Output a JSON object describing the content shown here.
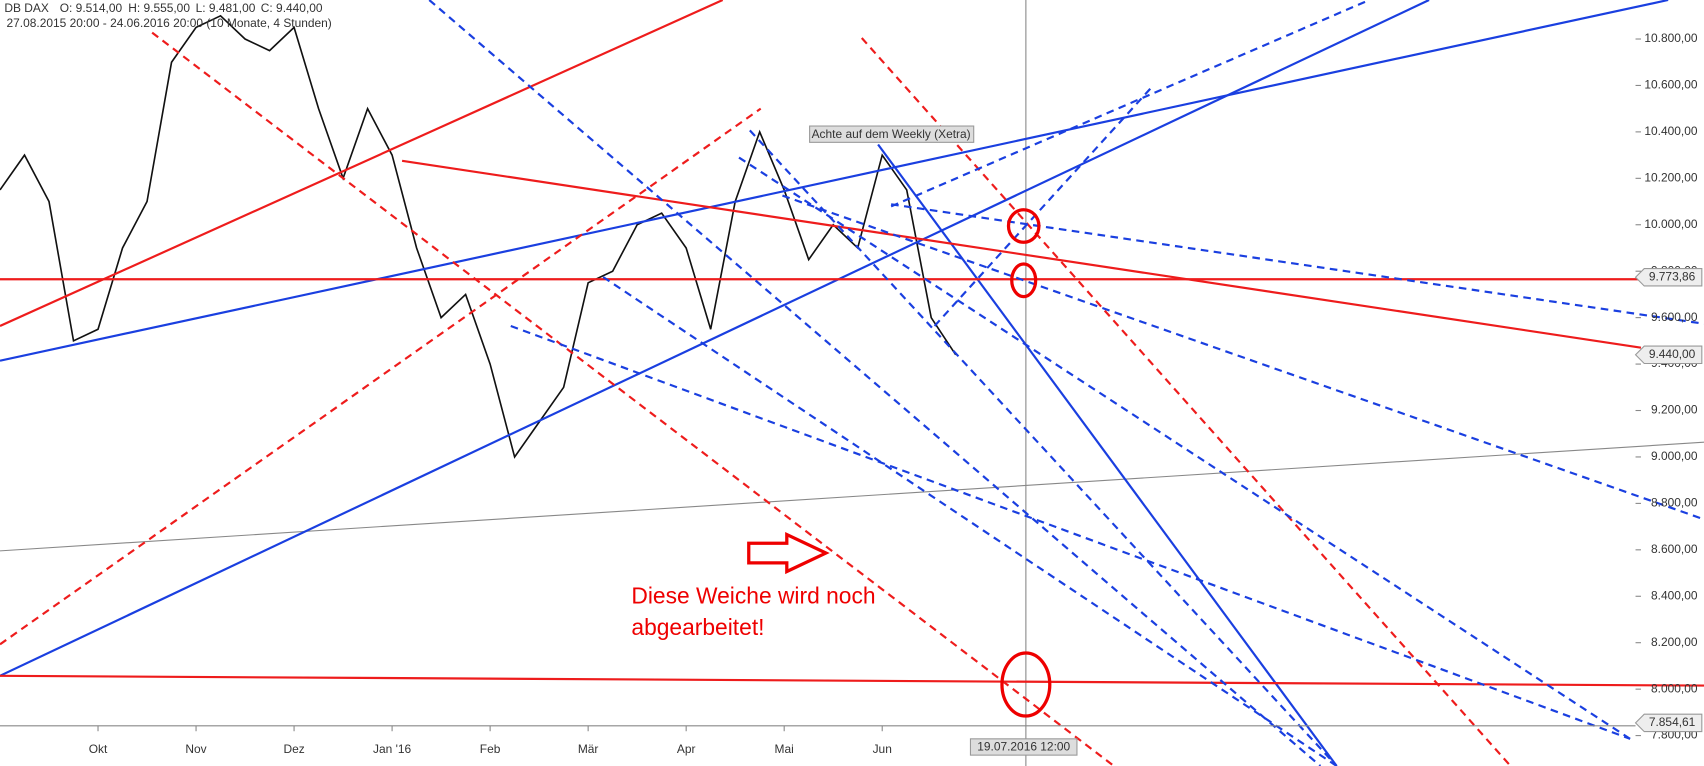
{
  "chart_data": {
    "type": "line",
    "title": "DB DAX",
    "ohlc_labels": [
      "O: 9.514,00",
      "H: 9.555,00",
      "L: 9.481,00",
      "C: 9.440,00"
    ],
    "subtitle": "27.08.2015 20:00 - 24.06.2016 20:00 (10 Monate, 4 Stunden)",
    "categories": [
      null,
      null,
      null,
      null,
      "Okt",
      null,
      null,
      null,
      "Nov",
      null,
      null,
      null,
      "Dez",
      null,
      null,
      null,
      "Jan '16",
      null,
      null,
      null,
      "Feb",
      null,
      null,
      null,
      "Mär",
      null,
      null,
      null,
      "Apr",
      null,
      null,
      null,
      "Mai",
      null,
      null,
      null,
      "Jun",
      null,
      null,
      null
    ],
    "values": [
      10150,
      10300,
      10100,
      9500,
      9550,
      9900,
      10100,
      10700,
      10850,
      10900,
      10800,
      10750,
      10850,
      10500,
      10200,
      10500,
      10300,
      9900,
      9600,
      9700,
      9400,
      9000,
      9150,
      9300,
      9750,
      9800,
      10000,
      10050,
      9900,
      9550,
      10100,
      10400,
      10150,
      9850,
      10000,
      9900,
      10300,
      10150,
      9600,
      9440
    ],
    "color": "#111111",
    "ylim": [
      7669,
      10968
    ],
    "yticks": [
      {
        "value": 7800,
        "label": "7.800,00"
      },
      {
        "value": 8000,
        "label": "8.000,00"
      },
      {
        "value": 8200,
        "label": "8.200,00"
      },
      {
        "value": 8400,
        "label": "8.400,00"
      },
      {
        "value": 8600,
        "label": "8.600,00"
      },
      {
        "value": 8800,
        "label": "8.800,00"
      },
      {
        "value": 9000,
        "label": "9.000,00"
      },
      {
        "value": 9200,
        "label": "9.200,00"
      },
      {
        "value": 9400,
        "label": "9.400,00"
      },
      {
        "value": 9600,
        "label": "9.600,00"
      },
      {
        "value": 9800,
        "label": "9.800,00"
      },
      {
        "value": 10000,
        "label": "10.000,00"
      },
      {
        "value": 10200,
        "label": "10.200,00"
      },
      {
        "value": 10400,
        "label": "10.400,00"
      },
      {
        "value": 10600,
        "label": "10.600,00"
      },
      {
        "value": 10800,
        "label": "10.800,00"
      }
    ],
    "price_markers": [
      {
        "value": 9773.86,
        "label": "9.773,86"
      },
      {
        "value": 9440,
        "label": "9.440,00"
      },
      {
        "value": 7854.61,
        "label": "7.854,61"
      }
    ],
    "annotations": {
      "note": "Achte auf dem Weekly (Xetra)",
      "comment": [
        "Diese Weiche wird noch",
        "abgearbeitet!"
      ],
      "crosshair_date": "19.07.2016 12:00"
    }
  }
}
